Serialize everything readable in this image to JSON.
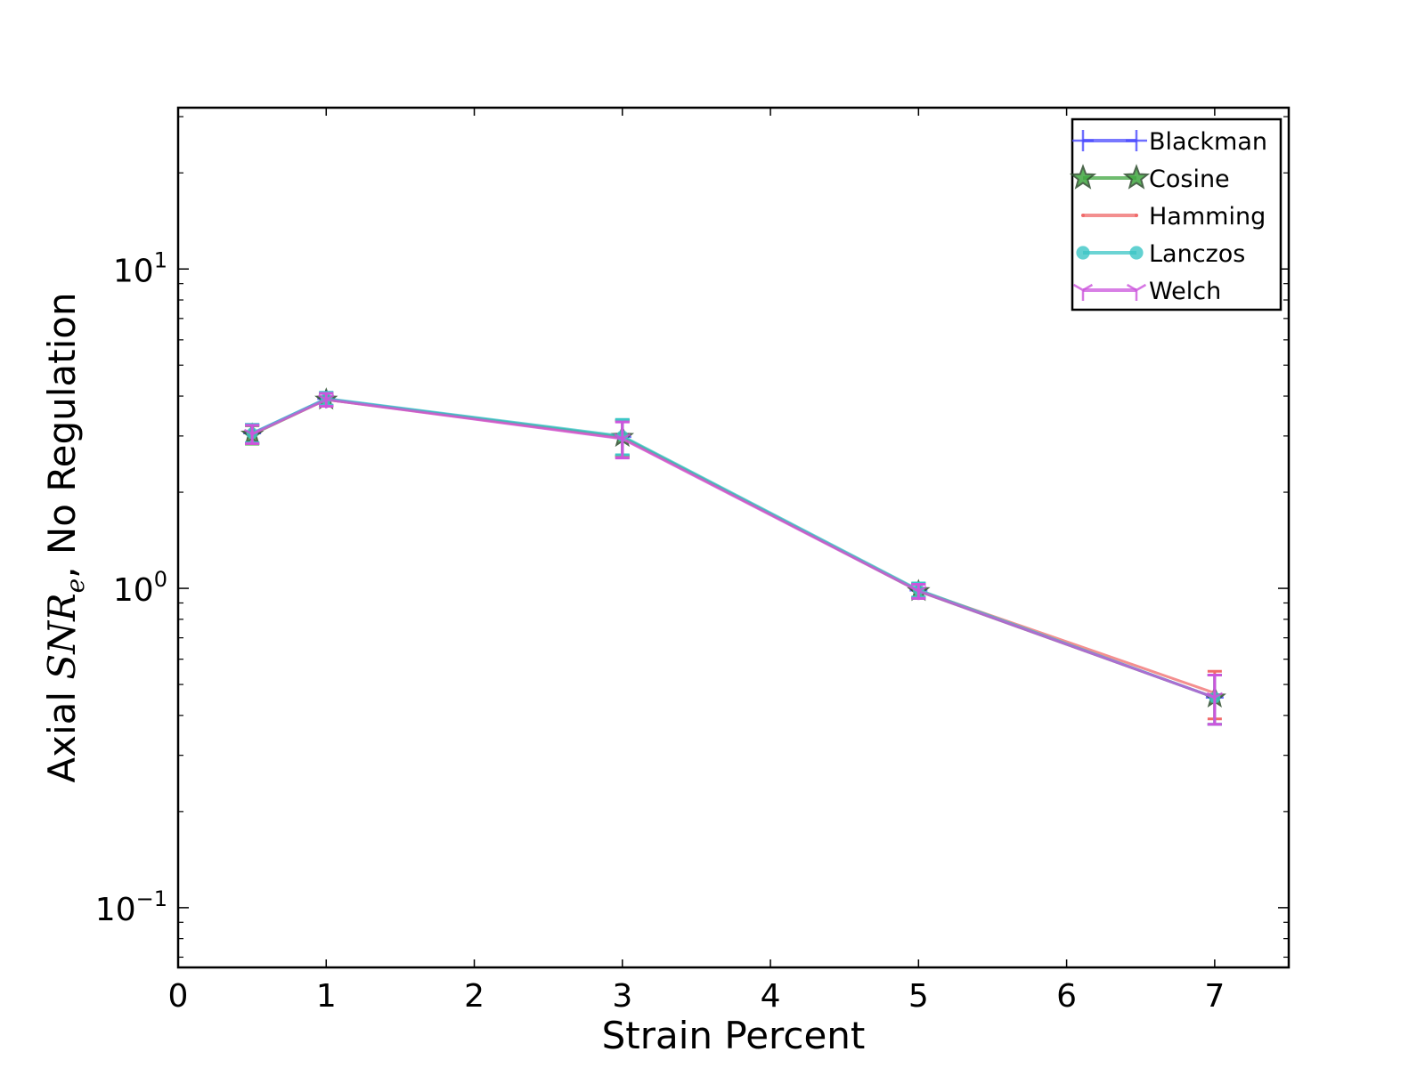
{
  "chart_data": {
    "type": "line",
    "xlabel": "Strain Percent",
    "ylabel": {
      "prefix": "Axial ",
      "math_main": "SNR",
      "math_sub": "e",
      "suffix": ", No Regulation"
    },
    "xlim": [
      0,
      7.5
    ],
    "ylim": [
      0.065,
      32
    ],
    "yscale": "log",
    "grid": false,
    "legend_position": "top-right",
    "x_ticks": [
      {
        "value": 0,
        "label": "0"
      },
      {
        "value": 1,
        "label": "1"
      },
      {
        "value": 2,
        "label": "2"
      },
      {
        "value": 3,
        "label": "3"
      },
      {
        "value": 4,
        "label": "4"
      },
      {
        "value": 5,
        "label": "5"
      },
      {
        "value": 6,
        "label": "6"
      },
      {
        "value": 7,
        "label": "7"
      }
    ],
    "y_ticks": [
      {
        "value": 0.1,
        "base": "10",
        "exp": "−1"
      },
      {
        "value": 1,
        "base": "10",
        "exp": "0"
      },
      {
        "value": 10,
        "base": "10",
        "exp": "1"
      }
    ],
    "x": [
      0.5,
      1,
      3,
      5,
      7
    ],
    "series": [
      {
        "name": "Blackman",
        "color": "#4b4bff",
        "marker": "plus",
        "values": [
          3.06,
          3.92,
          2.98,
          0.985,
          0.455
        ],
        "errors": [
          0.2,
          0.18,
          0.38,
          0.05,
          0.08
        ]
      },
      {
        "name": "Cosine",
        "color": "#3fa63f",
        "marker": "star",
        "values": [
          3.03,
          3.9,
          2.98,
          0.98,
          0.455
        ],
        "errors": [
          0.2,
          0.18,
          0.38,
          0.05,
          0.08
        ]
      },
      {
        "name": "Hamming",
        "color": "#f06a6a",
        "marker": "point",
        "values": [
          3.04,
          3.9,
          2.95,
          0.985,
          0.47
        ],
        "errors": [
          0.2,
          0.18,
          0.38,
          0.05,
          0.08
        ]
      },
      {
        "name": "Lanczos",
        "color": "#3cc6c6",
        "marker": "circle",
        "values": [
          3.06,
          3.93,
          3.0,
          0.99,
          0.455
        ],
        "errors": [
          0.2,
          0.18,
          0.38,
          0.05,
          0.08
        ]
      },
      {
        "name": "Welch",
        "color": "#cc55dd",
        "marker": "tri",
        "values": [
          3.04,
          3.9,
          2.94,
          0.98,
          0.455
        ],
        "errors": [
          0.2,
          0.18,
          0.38,
          0.05,
          0.08
        ]
      }
    ]
  }
}
